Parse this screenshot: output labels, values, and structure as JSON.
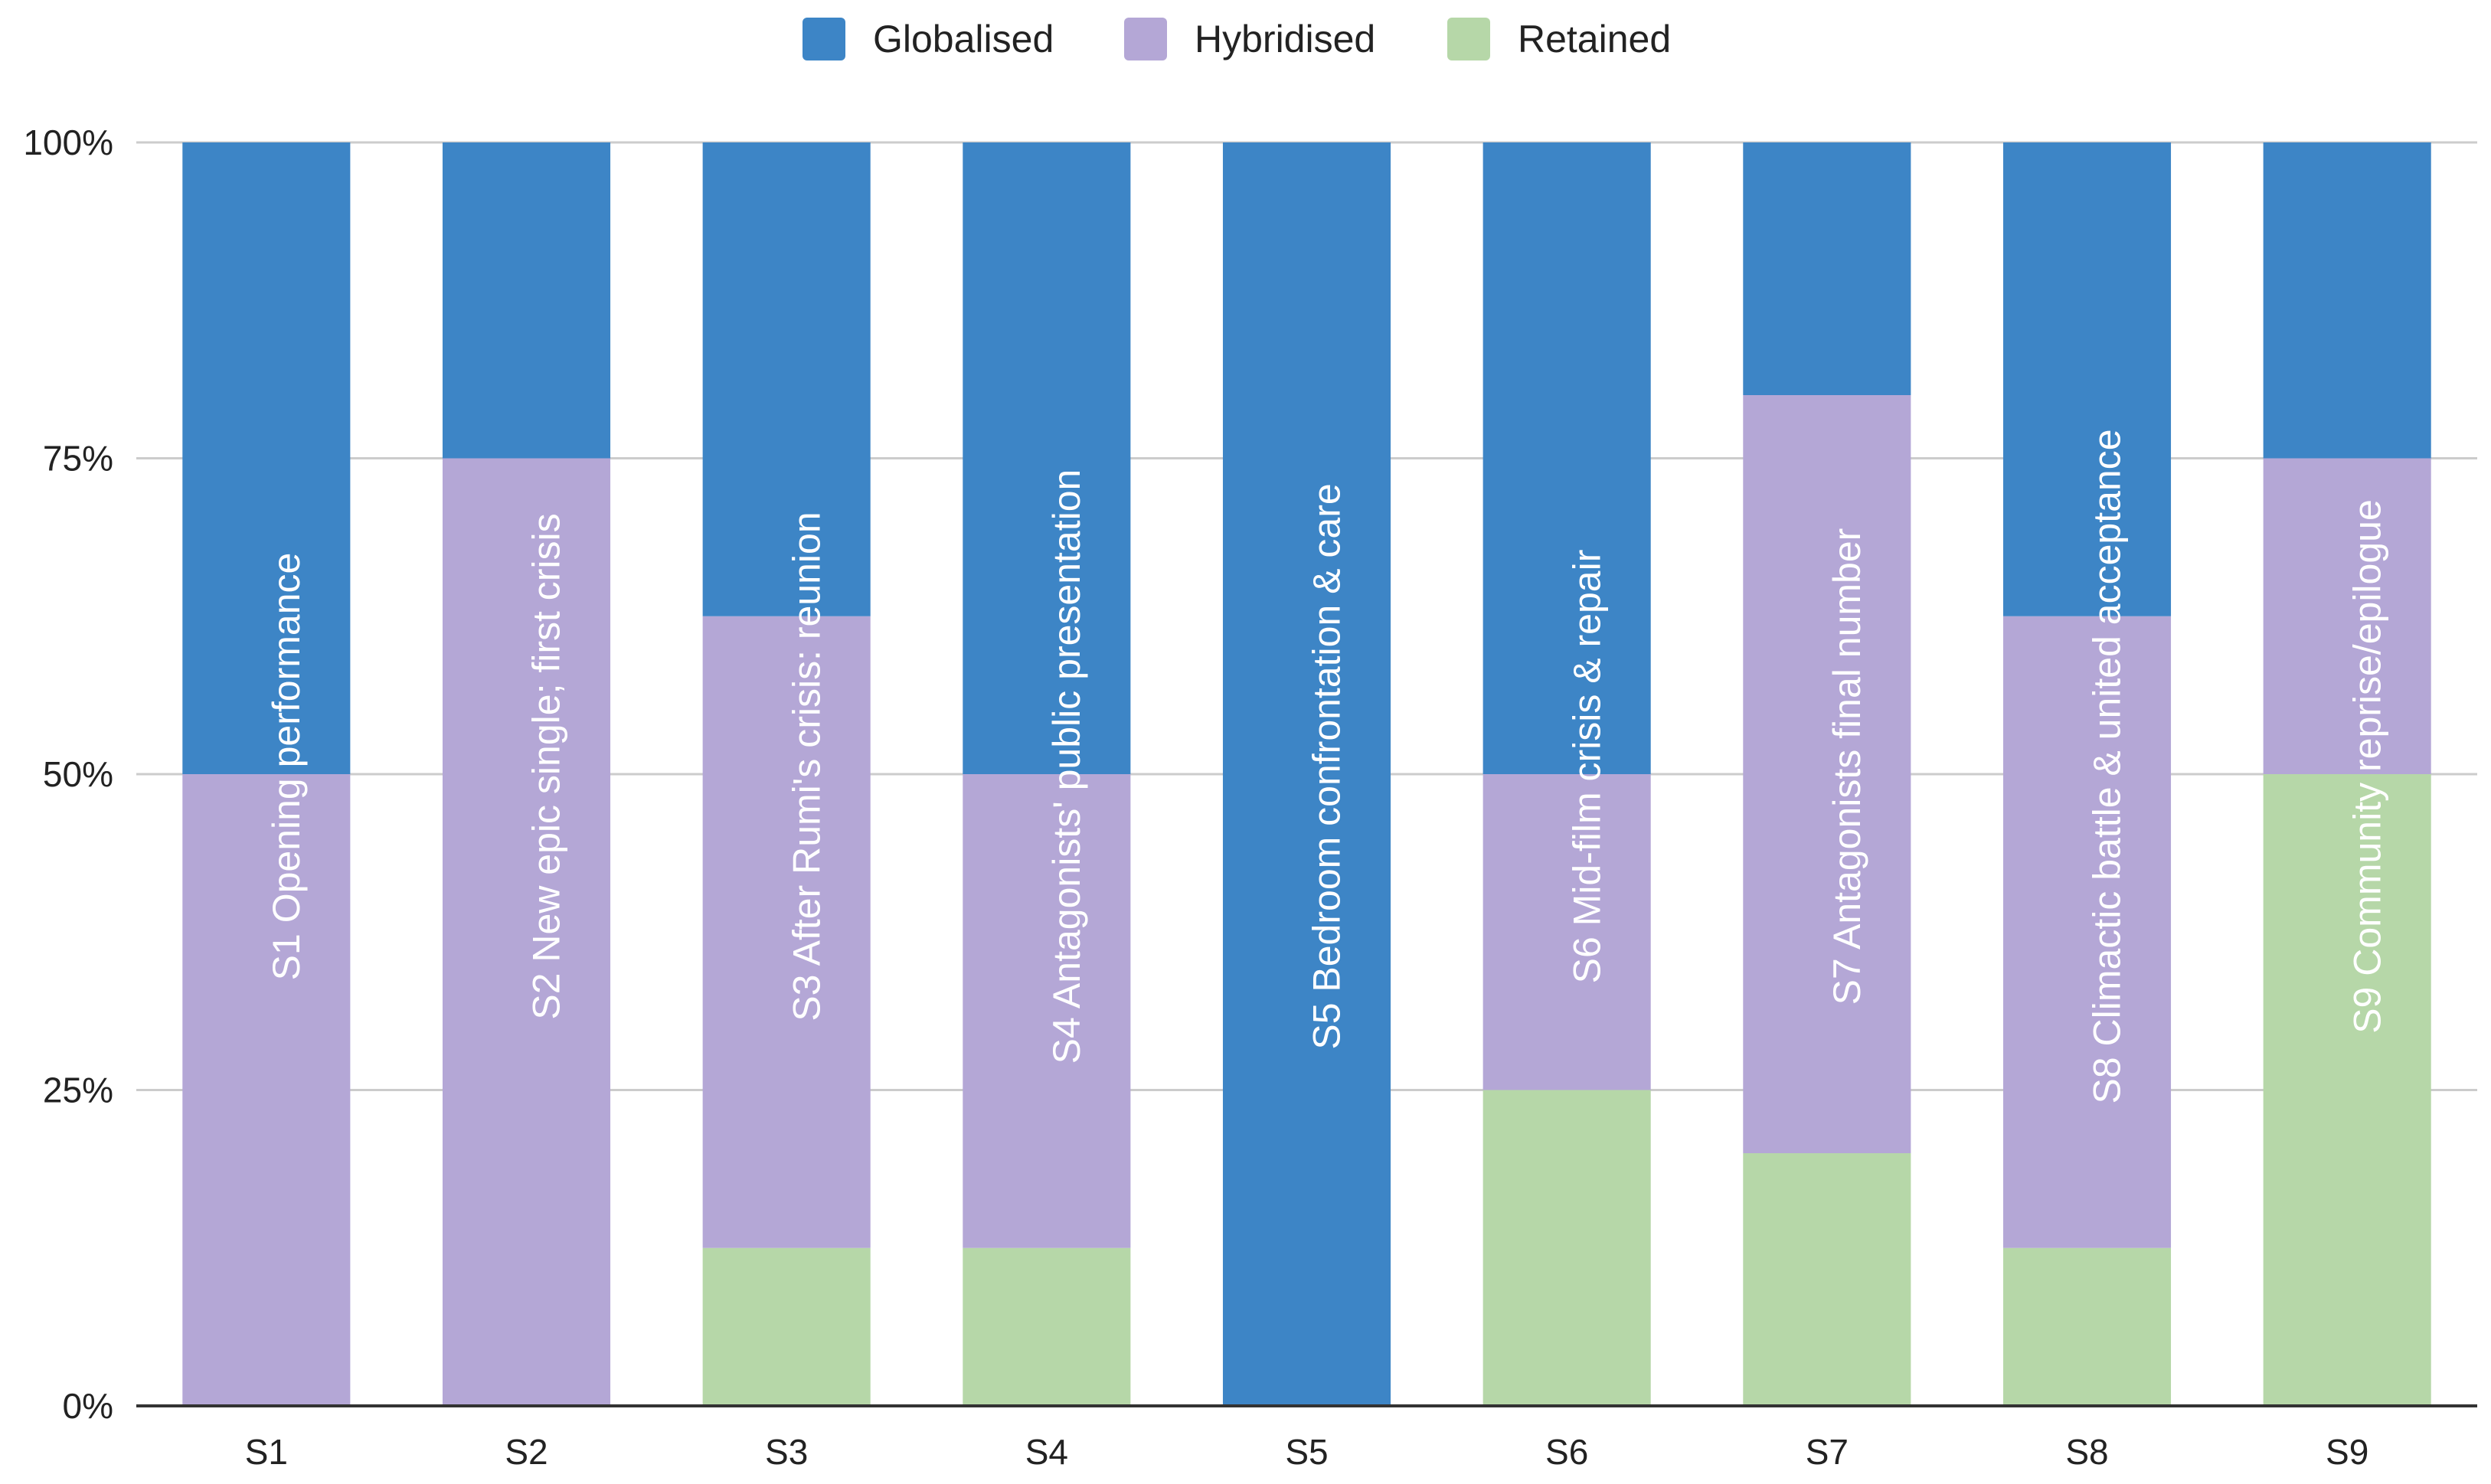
{
  "chart_data": {
    "type": "bar",
    "stacked": true,
    "percent": true,
    "title": "",
    "xlabel": "",
    "ylabel": "",
    "ylim": [
      0,
      100
    ],
    "yticks": [
      "0%",
      "25%",
      "50%",
      "75%",
      "100%"
    ],
    "ytick_values": [
      0,
      25,
      50,
      75,
      100
    ],
    "legend_position": "top-center",
    "categories": [
      "S1",
      "S2",
      "S3",
      "S4",
      "S5",
      "S6",
      "S7",
      "S8",
      "S9"
    ],
    "scene_labels": [
      "S1 Opening performance",
      "S2 New epic single; first crisis",
      "S3 After Rumi's crisis: reunion",
      "S4 Antagonists' public presentation",
      "S5 Bedroom confrontation & care",
      "S6 Mid-film crisis & repair",
      "S7 Antagonists final number",
      "S8 Climactic battle & united acceptance",
      "S9 Community reprise/epilogue"
    ],
    "series": [
      {
        "name": "Retained",
        "color": "#b6d7a8",
        "values": [
          0,
          0,
          12.5,
          12.5,
          0,
          25,
          20,
          12.5,
          50
        ]
      },
      {
        "name": "Hybridised",
        "color": "#b4a7d6",
        "values": [
          50,
          75,
          50,
          37.5,
          0,
          25,
          60,
          50,
          25
        ]
      },
      {
        "name": "Globalised",
        "color": "#3d85c6",
        "values": [
          50,
          25,
          37.5,
          50,
          100,
          50,
          20,
          37.5,
          25
        ]
      }
    ],
    "legend": [
      "Globalised",
      "Hybridised",
      "Retained"
    ]
  }
}
